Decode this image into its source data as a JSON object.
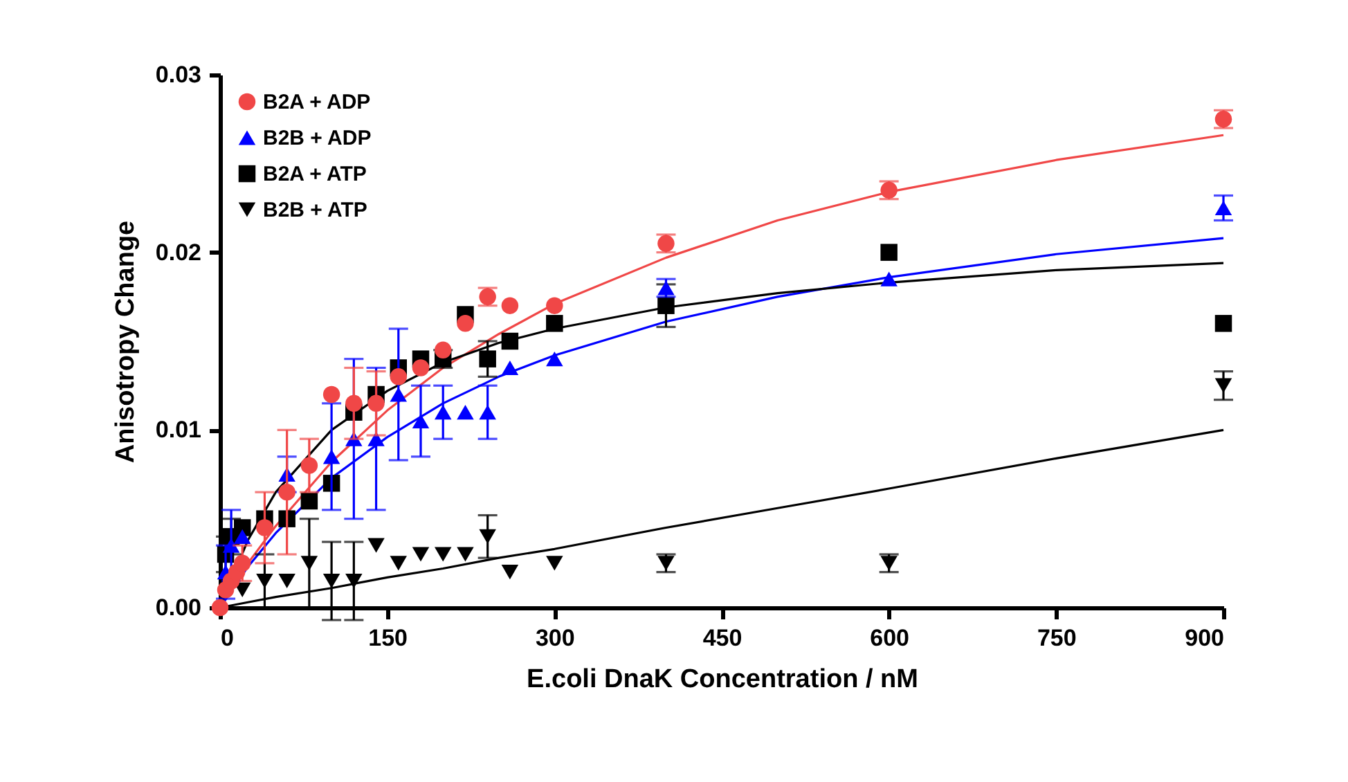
{
  "chart_data": {
    "type": "scatter",
    "xlabel": "E.coli DnaK Concentration / nM",
    "ylabel": "Anisotropy Change",
    "xlim": [
      0,
      900
    ],
    "xticks": [
      0,
      150,
      300,
      450,
      600,
      750,
      900
    ],
    "ylim": [
      0,
      0.03
    ],
    "yticks": [
      {
        "value": 0,
        "label": "0.00"
      },
      {
        "value": 0.01,
        "label": "0.01"
      },
      {
        "value": 0.02,
        "label": "0.02"
      },
      {
        "value": 0.03,
        "label": "0.03"
      }
    ],
    "grid": false,
    "legend": "top left",
    "x": [
      0,
      5,
      10,
      15,
      20,
      40,
      60,
      80,
      100,
      120,
      140,
      160,
      180,
      200,
      220,
      240,
      260,
      300,
      400,
      600,
      900
    ],
    "series": [
      {
        "name": "B2A + ADP",
        "color": "#f04747",
        "marker": "circle",
        "values": [
          0,
          0.001,
          0.0015,
          0.002,
          0.0025,
          0.0045,
          0.0065,
          0.008,
          0.012,
          0.0115,
          0.0115,
          0.013,
          0.0135,
          0.0145,
          0.016,
          0.0175,
          0.017,
          0.017,
          0.0205,
          0.0235,
          0.0275
        ],
        "errors": [
          null,
          null,
          null,
          null,
          0.001,
          0.002,
          0.0035,
          0.0015,
          null,
          0.002,
          0.0018,
          null,
          null,
          null,
          null,
          0.0005,
          null,
          null,
          0.0005,
          0.0005,
          0.0005
        ]
      },
      {
        "name": "B2B + ADP",
        "color": "#0000ff",
        "marker": "triangle",
        "values": [
          null,
          0.002,
          0.0035,
          null,
          0.004,
          null,
          0.0075,
          null,
          0.0085,
          0.0095,
          0.0095,
          0.012,
          0.0105,
          0.011,
          0.011,
          0.011,
          0.0135,
          0.014,
          0.018,
          0.0185,
          0.0225
        ],
        "errors": [
          null,
          0.0015,
          0.002,
          null,
          null,
          null,
          0.001,
          null,
          0.003,
          0.0045,
          0.004,
          0.0037,
          0.002,
          0.0015,
          null,
          0.0015,
          null,
          null,
          0.0005,
          null,
          0.0007
        ]
      },
      {
        "name": "B2A + ATP",
        "color": "#000000",
        "marker": "square",
        "values": [
          null,
          0.003,
          0.004,
          null,
          0.0045,
          0.005,
          0.005,
          0.006,
          0.007,
          0.011,
          0.012,
          0.0135,
          0.014,
          0.014,
          0.0165,
          0.014,
          0.015,
          0.016,
          0.017,
          0.02,
          0.016
        ],
        "errors": [
          null,
          0.001,
          0.001,
          null,
          null,
          null,
          null,
          null,
          null,
          null,
          null,
          null,
          null,
          0.0005,
          null,
          0.001,
          null,
          null,
          0.0012,
          null,
          null
        ]
      },
      {
        "name": "B2B + ATP",
        "color": "#000000",
        "marker": "triangle-down",
        "values": [
          null,
          null,
          null,
          null,
          0.001,
          0.0015,
          0.0015,
          0.0025,
          0.0015,
          0.0015,
          0.0035,
          0.0025,
          0.003,
          0.003,
          0.003,
          0.004,
          0.002,
          0.0025,
          0.0025,
          0.0025,
          0.0125
        ],
        "errors": [
          null,
          null,
          null,
          null,
          null,
          0.0015,
          null,
          0.0025,
          0.0022,
          0.0022,
          null,
          null,
          null,
          null,
          null,
          0.0012,
          null,
          null,
          0.0005,
          0.0005,
          0.0008
        ]
      },
      {
        "type": "line",
        "line_style": "solid",
        "color": "#f04747",
        "x": [
          0,
          25,
          50,
          100,
          150,
          200,
          250,
          300,
          400,
          500,
          600,
          750,
          900
        ],
        "values": [
          0,
          0.0025,
          0.0046,
          0.0082,
          0.0111,
          0.0135,
          0.0154,
          0.0171,
          0.0197,
          0.0218,
          0.0234,
          0.0252,
          0.0266
        ]
      },
      {
        "type": "line",
        "line_style": "solid",
        "color": "#0000ff",
        "x": [
          0,
          25,
          50,
          100,
          150,
          200,
          250,
          300,
          400,
          500,
          600,
          750,
          900
        ],
        "values": [
          0,
          0.0023,
          0.0042,
          0.0073,
          0.0096,
          0.0115,
          0.013,
          0.0142,
          0.0161,
          0.0175,
          0.0186,
          0.0199,
          0.0208
        ]
      },
      {
        "type": "line",
        "line_style": "solid",
        "color": "#000000",
        "x": [
          0,
          25,
          50,
          100,
          150,
          200,
          250,
          300,
          400,
          500,
          600,
          750,
          900
        ],
        "values": [
          0,
          0.0038,
          0.0065,
          0.01,
          0.0122,
          0.0138,
          0.0149,
          0.0157,
          0.0169,
          0.0177,
          0.0183,
          0.019,
          0.0194
        ]
      },
      {
        "type": "line",
        "line_style": "solid",
        "color": "#000000",
        "x": [
          0,
          25,
          50,
          100,
          150,
          200,
          250,
          300,
          400,
          500,
          600,
          750,
          900
        ],
        "values": [
          0,
          0.0003,
          0.0006,
          0.0011,
          0.0017,
          0.0022,
          0.0028,
          0.0033,
          0.0045,
          0.0056,
          0.0067,
          0.0084,
          0.01
        ]
      }
    ]
  }
}
